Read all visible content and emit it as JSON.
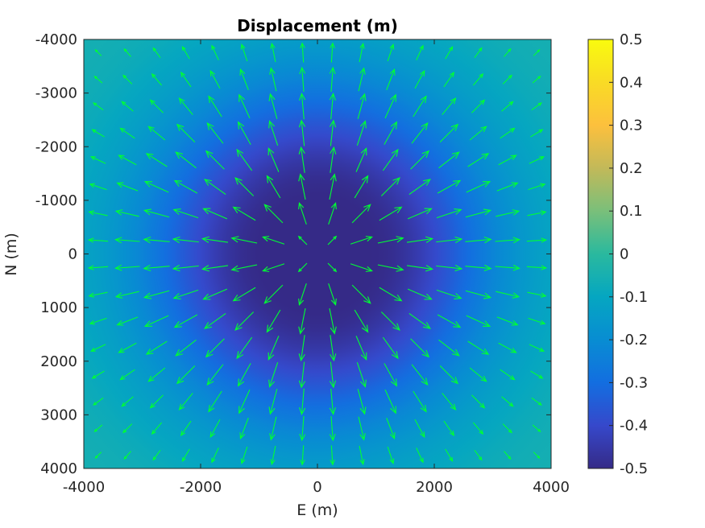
{
  "chart_data": {
    "type": "heatmap",
    "title": "Displacement (m)",
    "xlabel": "E (m)",
    "ylabel": "N (m)",
    "xlim": [
      -4000,
      4000
    ],
    "ylim": [
      -4000,
      4000
    ],
    "y_direction": "reversed",
    "grid": false,
    "x_ticks": [
      "-4000",
      "-2000",
      "0",
      "2000",
      "4000"
    ],
    "y_ticks": [
      "-4000",
      "-3000",
      "-2000",
      "-1000",
      "0",
      "1000",
      "2000",
      "3000",
      "4000"
    ],
    "x_tick_values": [
      -4000,
      -2000,
      0,
      2000,
      4000
    ],
    "y_tick_values": [
      -4000,
      -3000,
      -2000,
      -1000,
      0,
      1000,
      2000,
      3000,
      4000
    ],
    "field": {
      "description": "radially symmetric vertical displacement, minimum at center",
      "center": [
        0,
        0
      ],
      "center_value": -0.5,
      "edge_value": -0.05,
      "core_radius": 900,
      "decay_scale": 2200
    },
    "colorbar": {
      "range": [
        -0.5,
        0.5
      ],
      "colormap": "parula",
      "ticks": [
        "-0.5",
        "-0.4",
        "-0.3",
        "-0.2",
        "-0.1",
        "0",
        "0.1",
        "0.2",
        "0.3",
        "0.4",
        "0.5"
      ],
      "tick_values": [
        -0.5,
        -0.4,
        -0.3,
        -0.2,
        -0.1,
        0,
        0.1,
        0.2,
        0.3,
        0.4,
        0.5
      ]
    },
    "quiver": {
      "color": "#00ff33",
      "grid_start": -3750,
      "grid_step": 500,
      "grid_count": 16,
      "direction": "radially outward from center",
      "peak_radius": 1900
    }
  }
}
